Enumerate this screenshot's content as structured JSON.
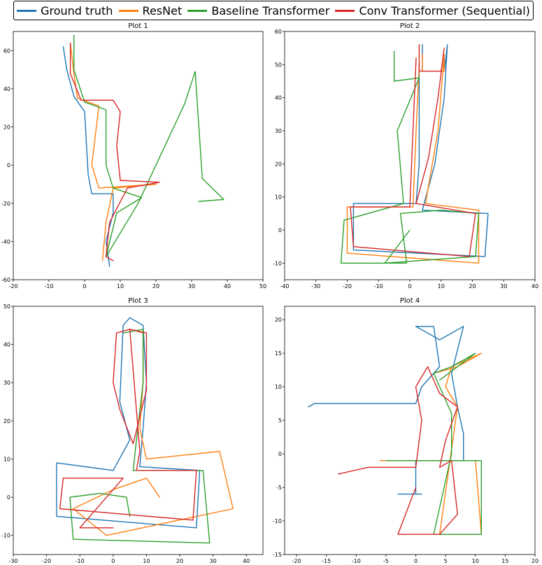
{
  "colors": {
    "ground_truth": "#1f77b4",
    "resnet": "#ff7f0e",
    "baseline": "#2ca02c",
    "conv": "#d62728"
  },
  "legend": [
    {
      "label": "Ground truth",
      "color": "#1f77b4"
    },
    {
      "label": "ResNet",
      "color": "#ff7f0e"
    },
    {
      "label": "Baseline Transformer",
      "color": "#2ca02c"
    },
    {
      "label": "Conv Transformer (Sequential)",
      "color": "#d62728"
    }
  ],
  "chart_data": [
    {
      "type": "line",
      "title": "Plot 1",
      "xlim": [
        -20,
        50
      ],
      "ylim": [
        -60,
        70
      ],
      "xticks": [
        -20,
        -10,
        0,
        10,
        20,
        30,
        40,
        50
      ],
      "yticks": [
        -60,
        -40,
        -20,
        0,
        20,
        40,
        60
      ],
      "grid": false,
      "series": [
        {
          "name": "Ground truth",
          "color": "#1f77b4",
          "points": [
            [
              -6,
              62
            ],
            [
              -5,
              50
            ],
            [
              -3,
              36
            ],
            [
              0,
              28
            ],
            [
              1,
              -5
            ],
            [
              2,
              -15
            ],
            [
              8,
              -15
            ],
            [
              8,
              -25
            ],
            [
              6,
              -40
            ],
            [
              7,
              -53
            ]
          ]
        },
        {
          "name": "ResNet",
          "color": "#ff7f0e",
          "points": [
            [
              -4,
              64
            ],
            [
              -3,
              48
            ],
            [
              -2,
              35
            ],
            [
              4,
              31
            ],
            [
              2,
              0
            ],
            [
              4,
              -12
            ],
            [
              20,
              -10
            ],
            [
              8,
              -12
            ],
            [
              6,
              -30
            ],
            [
              5,
              -50
            ]
          ]
        },
        {
          "name": "Baseline Transformer",
          "color": "#2ca02c",
          "points": [
            [
              -3,
              68
            ],
            [
              -3,
              50
            ],
            [
              0,
              33
            ],
            [
              6,
              29
            ],
            [
              6,
              0
            ],
            [
              8,
              -12
            ],
            [
              16,
              -17
            ],
            [
              9,
              -25
            ],
            [
              6,
              -48
            ],
            [
              15,
              -20
            ],
            [
              28,
              32
            ],
            [
              31,
              49
            ],
            [
              33,
              -7
            ],
            [
              39,
              -18
            ],
            [
              32,
              -19
            ]
          ]
        },
        {
          "name": "Conv Transformer (Sequential)",
          "color": "#d62728",
          "points": [
            [
              -4,
              64
            ],
            [
              -4,
              48
            ],
            [
              -1,
              34
            ],
            [
              8,
              34
            ],
            [
              10,
              28
            ],
            [
              9,
              10
            ],
            [
              10,
              -8
            ],
            [
              21,
              -9
            ],
            [
              12,
              -12
            ],
            [
              7,
              -30
            ],
            [
              6,
              -48
            ],
            [
              8,
              -50
            ]
          ]
        }
      ]
    },
    {
      "type": "line",
      "title": "Plot 2",
      "xlim": [
        -40,
        40
      ],
      "ylim": [
        -15,
        60
      ],
      "xticks": [
        -40,
        -30,
        -20,
        -10,
        0,
        10,
        20,
        30,
        40
      ],
      "yticks": [
        -10,
        0,
        10,
        20,
        30,
        40,
        50,
        60
      ],
      "grid": false,
      "series": [
        {
          "name": "Ground truth",
          "color": "#1f77b4",
          "points": [
            [
              4,
              56
            ],
            [
              4,
              48
            ],
            [
              11,
              48
            ],
            [
              12,
              56
            ],
            [
              11,
              40
            ],
            [
              8,
              20
            ],
            [
              4,
              6
            ],
            [
              25,
              5
            ],
            [
              24,
              -8
            ],
            [
              -18,
              -6
            ],
            [
              -18,
              8
            ],
            [
              2,
              8
            ],
            [
              3,
              20
            ],
            [
              3,
              50
            ]
          ]
        },
        {
          "name": "ResNet",
          "color": "#ff7f0e",
          "points": [
            [
              4,
              53
            ],
            [
              4,
              48
            ],
            [
              11,
              48
            ],
            [
              11,
              53
            ],
            [
              9,
              30
            ],
            [
              5,
              8
            ],
            [
              22,
              6
            ],
            [
              22,
              -10
            ],
            [
              -20,
              -7
            ],
            [
              -20,
              7
            ],
            [
              1,
              7
            ],
            [
              2,
              30
            ],
            [
              3,
              50
            ]
          ]
        },
        {
          "name": "Baseline Transformer",
          "color": "#2ca02c",
          "points": [
            [
              -5,
              54
            ],
            [
              -5,
              45
            ],
            [
              3,
              46
            ],
            [
              -4,
              30
            ],
            [
              -2,
              8
            ],
            [
              -21,
              3
            ],
            [
              -22,
              -10
            ],
            [
              -1,
              -10
            ],
            [
              -3,
              5
            ],
            [
              10,
              6
            ],
            [
              22,
              5
            ],
            [
              21,
              -8
            ],
            [
              -8,
              -10
            ],
            [
              0,
              0
            ]
          ]
        },
        {
          "name": "Conv Transformer (Sequential)",
          "color": "#d62728",
          "points": [
            [
              3,
              56
            ],
            [
              3,
              48
            ],
            [
              10,
              48
            ],
            [
              11,
              55
            ],
            [
              9,
              40
            ],
            [
              6,
              22
            ],
            [
              2,
              8
            ],
            [
              21,
              5
            ],
            [
              19,
              -8
            ],
            [
              -18,
              -5
            ],
            [
              -19,
              7
            ],
            [
              0,
              7
            ],
            [
              1,
              30
            ],
            [
              2,
              52
            ]
          ]
        }
      ]
    },
    {
      "type": "line",
      "title": "Plot 3",
      "xlim": [
        -30,
        45
      ],
      "ylim": [
        -15,
        50
      ],
      "xticks": [
        -30,
        -20,
        -10,
        0,
        10,
        20,
        30,
        40
      ],
      "yticks": [
        -10,
        0,
        10,
        20,
        30,
        40,
        50
      ],
      "grid": false,
      "series": [
        {
          "name": "Ground truth",
          "color": "#1f77b4",
          "points": [
            [
              5,
              47
            ],
            [
              9,
              45
            ],
            [
              10,
              30
            ],
            [
              9,
              18
            ],
            [
              8,
              8
            ],
            [
              26,
              7
            ],
            [
              25,
              -8
            ],
            [
              -17,
              -5
            ],
            [
              -17,
              9
            ],
            [
              0,
              7
            ],
            [
              5,
              15
            ],
            [
              2,
              25
            ],
            [
              3,
              45
            ],
            [
              5,
              47
            ]
          ]
        },
        {
          "name": "ResNet",
          "color": "#ff7f0e",
          "points": [
            [
              5,
              44
            ],
            [
              9,
              43
            ],
            [
              9,
              30
            ],
            [
              8,
              18
            ],
            [
              10,
              10
            ],
            [
              32,
              12
            ],
            [
              36,
              -3
            ],
            [
              -2,
              -10
            ],
            [
              -12,
              -3
            ],
            [
              0,
              2
            ],
            [
              10,
              5
            ],
            [
              14,
              0
            ]
          ]
        },
        {
          "name": "Baseline Transformer",
          "color": "#2ca02c",
          "points": [
            [
              3,
              43
            ],
            [
              9,
              44
            ],
            [
              9,
              30
            ],
            [
              7,
              15
            ],
            [
              6,
              7
            ],
            [
              27,
              7
            ],
            [
              29,
              -12
            ],
            [
              -12,
              -11
            ],
            [
              -13,
              0
            ],
            [
              -4,
              1
            ],
            [
              4,
              0
            ],
            [
              5,
              -5
            ]
          ]
        },
        {
          "name": "Conv Transformer (Sequential)",
          "color": "#d62728",
          "points": [
            [
              5,
              44
            ],
            [
              10,
              43
            ],
            [
              10,
              28
            ],
            [
              6,
              14
            ],
            [
              2,
              23
            ],
            [
              0,
              30
            ],
            [
              1,
              43
            ],
            [
              5,
              44
            ],
            [
              8,
              12
            ],
            [
              7,
              7
            ],
            [
              25,
              7
            ],
            [
              24,
              -6
            ],
            [
              -16,
              -3
            ],
            [
              -15,
              5
            ],
            [
              3,
              5
            ],
            [
              -10,
              -8
            ],
            [
              0,
              -8
            ]
          ]
        }
      ]
    },
    {
      "type": "line",
      "title": "Plot 4",
      "xlim": [
        -22,
        20
      ],
      "ylim": [
        -15,
        22
      ],
      "xticks": [
        -20,
        -15,
        -10,
        -5,
        0,
        5,
        10,
        15,
        20
      ],
      "yticks": [
        -15,
        -10,
        -5,
        0,
        5,
        10,
        15,
        20
      ],
      "grid": false,
      "series": [
        {
          "name": "Ground truth",
          "color": "#1f77b4",
          "points": [
            [
              -18,
              7
            ],
            [
              -17,
              7.5
            ],
            [
              0,
              7.5
            ],
            [
              1,
              10
            ],
            [
              4,
              13
            ],
            [
              3,
              19
            ],
            [
              0,
              19
            ],
            [
              4,
              17
            ],
            [
              8,
              19
            ],
            [
              6,
              12
            ],
            [
              7,
              7
            ],
            [
              8,
              3
            ],
            [
              8,
              -1
            ],
            [
              0,
              -1
            ],
            [
              0,
              -6
            ],
            [
              -3,
              -6
            ],
            [
              1,
              -6
            ]
          ]
        },
        {
          "name": "ResNet",
          "color": "#ff7f0e",
          "points": [
            [
              -6,
              -1
            ],
            [
              10,
              -1
            ],
            [
              11,
              -12
            ],
            [
              4,
              -12
            ],
            [
              7,
              7
            ],
            [
              5,
              10
            ],
            [
              6,
              13
            ],
            [
              11,
              15
            ],
            [
              7,
              13
            ],
            [
              3,
              12
            ]
          ]
        },
        {
          "name": "Baseline Transformer",
          "color": "#2ca02c",
          "points": [
            [
              -5,
              -1
            ],
            [
              11,
              -1
            ],
            [
              11,
              -12
            ],
            [
              3,
              -12
            ],
            [
              6,
              0
            ],
            [
              6,
              6
            ],
            [
              3,
              12
            ],
            [
              6,
              13
            ],
            [
              10,
              15
            ],
            [
              7,
              13
            ],
            [
              4,
              11
            ]
          ]
        },
        {
          "name": "Conv Transformer (Sequential)",
          "color": "#d62728",
          "points": [
            [
              -13,
              -3
            ],
            [
              -8,
              -2
            ],
            [
              0,
              -2
            ],
            [
              1,
              5
            ],
            [
              0,
              10
            ],
            [
              2,
              13
            ],
            [
              4,
              9
            ],
            [
              7,
              7
            ],
            [
              5,
              2
            ],
            [
              4,
              -2
            ],
            [
              6,
              -1
            ],
            [
              7,
              -9
            ],
            [
              4,
              -12
            ],
            [
              -3,
              -12
            ],
            [
              0,
              -5
            ]
          ]
        }
      ]
    }
  ]
}
